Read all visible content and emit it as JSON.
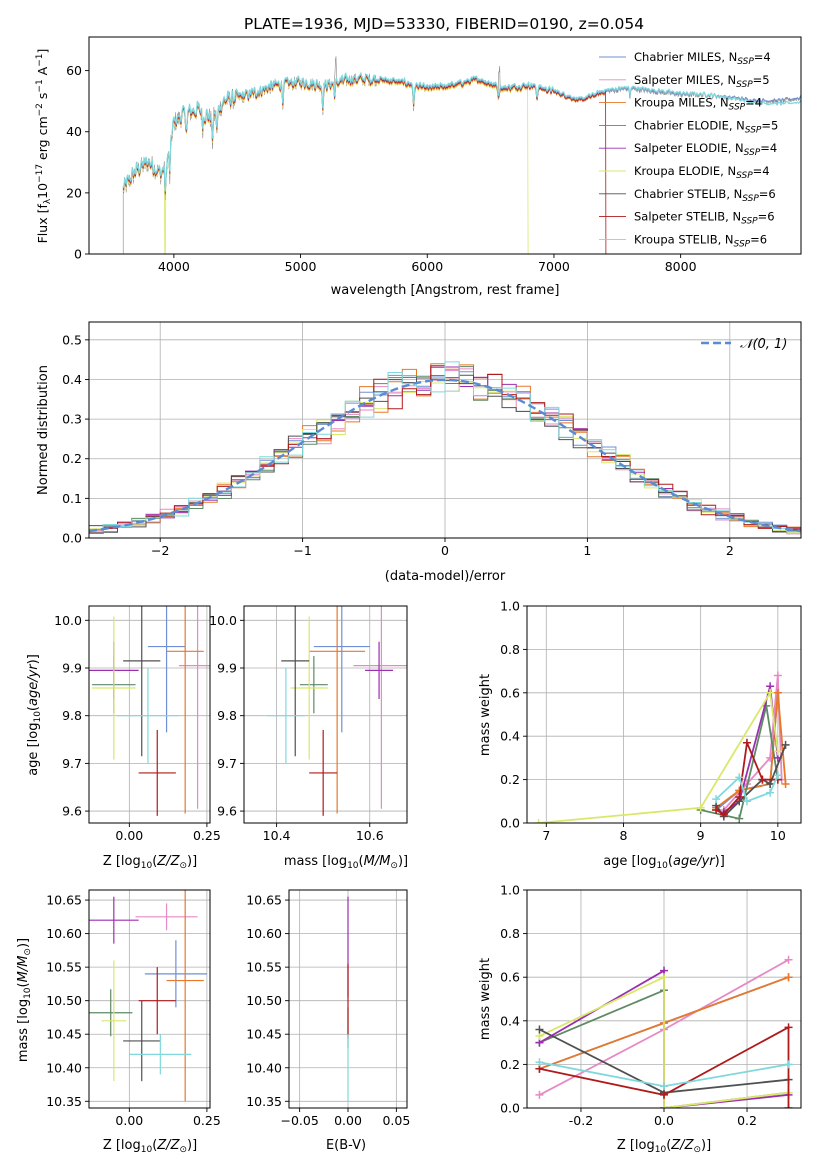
{
  "figure": {
    "title": "PLATE=1936, MJD=53330, FIBERID=0190, z=0.054"
  },
  "colors": {
    "Chabrier MILES": "#6f8fd6",
    "Salpeter MILES": "#e58ac4",
    "Kroupa MILES": "#e8782a",
    "Chabrier ELODIE": "#5f8a64",
    "Salpeter ELODIE": "#9b2fb0",
    "Kroupa ELODIE": "#d9e86a",
    "Chabrier STELIB": "#505050",
    "Salpeter STELIB": "#b01a1a",
    "Kroupa STELIB": "#7fd8dc",
    "normal": "#5b8bd4"
  },
  "chart_data": [
    {
      "id": "spectrum",
      "type": "line",
      "xlabel": "wavelength [Angstrom, rest frame]",
      "ylabel": "Flux [f_λ 10^-17 erg cm^-2 s^-1 A^-1]",
      "xlim": [
        3330,
        8950
      ],
      "ylim": [
        0,
        71
      ],
      "xticks": [
        4000,
        5000,
        6000,
        7000,
        8000
      ],
      "yticks": [
        0,
        20,
        40,
        60
      ],
      "grid": false,
      "legend_position": "top-right",
      "legend": [
        {
          "label": "Chabrier MILES",
          "sub": "SSP",
          "n": "=4"
        },
        {
          "label": "Salpeter MILES",
          "sub": "SSP",
          "n": "=5"
        },
        {
          "label": "Kroupa MILES",
          "sub": "SSP",
          "n": "=4"
        },
        {
          "label": "Chabrier ELODIE",
          "sub": "SSP",
          "n": "=5"
        },
        {
          "label": "Salpeter ELODIE",
          "sub": "SSP",
          "n": "=4"
        },
        {
          "label": "Kroupa ELODIE",
          "sub": "SSP",
          "n": "=4"
        },
        {
          "label": "Chabrier STELIB",
          "sub": "SSP",
          "n": "=6"
        },
        {
          "label": "Salpeter STELIB",
          "sub": "SSP",
          "n": "=6"
        },
        {
          "label": "Kroupa STELIB",
          "sub": "SSP",
          "n": "=6"
        }
      ],
      "continuum": [
        [
          3600,
          21
        ],
        [
          3700,
          27
        ],
        [
          3800,
          30
        ],
        [
          3900,
          26
        ],
        [
          3950,
          31
        ],
        [
          4000,
          43
        ],
        [
          4100,
          46
        ],
        [
          4200,
          47
        ],
        [
          4300,
          44
        ],
        [
          4400,
          50
        ],
        [
          4600,
          52
        ],
        [
          4800,
          55
        ],
        [
          5000,
          56
        ],
        [
          5200,
          55
        ],
        [
          5400,
          57
        ],
        [
          5600,
          57
        ],
        [
          5800,
          56
        ],
        [
          6000,
          54
        ],
        [
          6200,
          55
        ],
        [
          6400,
          57
        ],
        [
          6600,
          54
        ],
        [
          6800,
          55
        ],
        [
          7000,
          53
        ],
        [
          7200,
          50
        ],
        [
          7400,
          53
        ],
        [
          7600,
          54
        ],
        [
          7800,
          53
        ],
        [
          8000,
          52
        ],
        [
          8200,
          52
        ],
        [
          8400,
          51
        ],
        [
          8600,
          50
        ],
        [
          8800,
          50
        ],
        [
          8950,
          51
        ]
      ],
      "absorption_lines": [
        [
          3933,
          12
        ],
        [
          3968,
          11
        ],
        [
          4101,
          7
        ],
        [
          4227,
          5
        ],
        [
          4304,
          8
        ],
        [
          4340,
          7
        ],
        [
          4861,
          6
        ],
        [
          5175,
          8
        ],
        [
          5270,
          5
        ],
        [
          5893,
          8
        ],
        [
          6563,
          4
        ],
        [
          6867,
          4
        ],
        [
          7600,
          3
        ]
      ],
      "model_spikes": [
        [
          3933,
          0
        ],
        [
          6800,
          0
        ],
        [
          7410,
          0
        ]
      ]
    },
    {
      "id": "residuals",
      "type": "bar",
      "xlabel": "(data-model)/error",
      "ylabel": "Normed distribution",
      "xlim": [
        -2.5,
        2.5
      ],
      "ylim": [
        0,
        0.545
      ],
      "xticks": [
        -2,
        -1,
        0,
        1,
        2
      ],
      "yticks": [
        0.0,
        0.1,
        0.2,
        0.3,
        0.4,
        0.5
      ],
      "grid": true,
      "legend_position": "top-right",
      "legend": [
        {
          "label": "𝒩(0, 1)",
          "style": "dashed"
        }
      ],
      "bin_edges_start": -2.5,
      "bin_width": 0.1
    },
    {
      "id": "age_vs_Z",
      "type": "scatter",
      "xlabel": "Z [log10(Z/Z⊙)]",
      "ylabel": "age [log10(age/yr)]",
      "xlim": [
        -0.13,
        0.26
      ],
      "ylim": [
        9.575,
        10.03
      ],
      "xticks": [
        0.0,
        0.25
      ],
      "yticks": [
        9.6,
        9.7,
        9.8,
        9.9,
        10.0
      ],
      "points": [
        {
          "series": "Chabrier MILES",
          "x": 0.12,
          "y": 9.945,
          "xerr": 0.06,
          "yerr": 0.18
        },
        {
          "series": "Salpeter MILES",
          "x": 0.22,
          "y": 9.905,
          "xerr": 0.06,
          "yerr": 0.3
        },
        {
          "series": "Kroupa MILES",
          "x": 0.18,
          "y": 9.935,
          "xerr": 0.06,
          "yerr": 0.34
        },
        {
          "series": "Chabrier ELODIE",
          "x": -0.05,
          "y": 9.865,
          "xerr": 0.07,
          "yerr": 0.06
        },
        {
          "series": "Salpeter ELODIE",
          "x": -0.05,
          "y": 9.895,
          "xerr": 0.08,
          "yerr": 0.06
        },
        {
          "series": "Kroupa ELODIE",
          "x": -0.05,
          "y": 9.858,
          "xerr": 0.07,
          "yerr": 0.15
        },
        {
          "series": "Chabrier STELIB",
          "x": 0.04,
          "y": 9.915,
          "xerr": 0.06,
          "yerr": 0.2
        },
        {
          "series": "Salpeter STELIB",
          "x": 0.09,
          "y": 9.68,
          "xerr": 0.06,
          "yerr": 0.09
        },
        {
          "series": "Kroupa STELIB",
          "x": 0.06,
          "y": 9.8,
          "xerr": 0.1,
          "yerr": 0.1
        }
      ]
    },
    {
      "id": "age_vs_mass",
      "type": "scatter",
      "xlabel": "mass [log10(M/M⊙)]",
      "ylabel": "",
      "xlim": [
        10.33,
        10.68
      ],
      "ylim": [
        9.575,
        10.03
      ],
      "xticks": [
        10.4,
        10.6
      ],
      "yticks": [
        9.6,
        9.7,
        9.8,
        9.9,
        10.0
      ],
      "points": [
        {
          "series": "Chabrier MILES",
          "x": 10.54,
          "y": 9.945,
          "xerr": 0.06,
          "yerr": 0.18
        },
        {
          "series": "Salpeter MILES",
          "x": 10.625,
          "y": 9.905,
          "xerr": 0.06,
          "yerr": 0.3
        },
        {
          "series": "Kroupa MILES",
          "x": 10.53,
          "y": 9.935,
          "xerr": 0.06,
          "yerr": 0.34
        },
        {
          "series": "Chabrier ELODIE",
          "x": 10.48,
          "y": 9.865,
          "xerr": 0.03,
          "yerr": 0.06
        },
        {
          "series": "Salpeter ELODIE",
          "x": 10.62,
          "y": 9.895,
          "xerr": 0.03,
          "yerr": 0.06
        },
        {
          "series": "Kroupa ELODIE",
          "x": 10.47,
          "y": 9.858,
          "xerr": 0.04,
          "yerr": 0.15
        },
        {
          "series": "Chabrier STELIB",
          "x": 10.44,
          "y": 9.915,
          "xerr": 0.03,
          "yerr": 0.2
        },
        {
          "series": "Salpeter STELIB",
          "x": 10.5,
          "y": 9.68,
          "xerr": 0.03,
          "yerr": 0.09
        },
        {
          "series": "Kroupa STELIB",
          "x": 10.42,
          "y": 9.8,
          "xerr": 0.04,
          "yerr": 0.1
        }
      ]
    },
    {
      "id": "mass_weight_vs_age",
      "type": "line",
      "xlabel": "age [log10(age/yr)]",
      "ylabel": "mass weight",
      "xlim": [
        6.75,
        10.3
      ],
      "ylim": [
        0,
        1.0
      ],
      "xticks": [
        7,
        8,
        9,
        10
      ],
      "yticks": [
        0.0,
        0.2,
        0.4,
        0.6,
        0.8,
        1.0
      ],
      "grid": true,
      "series": [
        {
          "name": "Chabrier MILES",
          "x": [
            9.2,
            9.5,
            9.9,
            10.0
          ],
          "y": [
            0.06,
            0.15,
            0.18,
            0.6
          ]
        },
        {
          "name": "Salpeter MILES",
          "x": [
            9.3,
            9.6,
            9.9,
            10.0,
            10.05
          ],
          "y": [
            0.06,
            0.18,
            0.3,
            0.68,
            0.2
          ]
        },
        {
          "name": "Kroupa MILES",
          "x": [
            9.2,
            9.5,
            9.9,
            10.0,
            10.1
          ],
          "y": [
            0.07,
            0.15,
            0.18,
            0.6,
            0.18
          ]
        },
        {
          "name": "Chabrier ELODIE",
          "x": [
            9.0,
            9.5,
            9.85,
            10.0
          ],
          "y": [
            0.06,
            0.02,
            0.54,
            0.2
          ]
        },
        {
          "name": "Salpeter ELODIE",
          "x": [
            9.3,
            9.5,
            9.9,
            10.0
          ],
          "y": [
            0.05,
            0.1,
            0.63,
            0.3
          ]
        },
        {
          "name": "Kroupa ELODIE",
          "x": [
            6.9,
            9.0,
            9.9,
            10.0
          ],
          "y": [
            0.0,
            0.07,
            0.6,
            0.33
          ]
        },
        {
          "name": "Chabrier STELIB",
          "x": [
            9.2,
            9.3,
            9.5,
            9.8,
            9.9,
            10.1
          ],
          "y": [
            0.08,
            0.03,
            0.1,
            0.2,
            0.18,
            0.36
          ]
        },
        {
          "name": "Salpeter STELIB",
          "x": [
            9.2,
            9.3,
            9.5,
            9.6,
            9.8,
            10.0
          ],
          "y": [
            0.06,
            0.04,
            0.12,
            0.37,
            0.2,
            0.2
          ]
        },
        {
          "name": "Kroupa STELIB",
          "x": [
            9.2,
            9.5,
            9.6,
            9.9,
            10.0
          ],
          "y": [
            0.11,
            0.21,
            0.1,
            0.14,
            0.22
          ]
        }
      ]
    },
    {
      "id": "mass_vs_Z",
      "type": "scatter",
      "xlabel": "Z [log10(Z/Z⊙)]",
      "ylabel": "mass [log10(M/M⊙)]",
      "xlim": [
        -0.13,
        0.26
      ],
      "ylim": [
        10.34,
        10.665
      ],
      "xticks": [
        0.0,
        0.25
      ],
      "yticks": [
        10.35,
        10.4,
        10.45,
        10.5,
        10.55,
        10.6,
        10.65
      ],
      "points": [
        {
          "series": "Chabrier MILES",
          "x": 0.15,
          "y": 10.54,
          "xerr": 0.1,
          "yerr": 0.05
        },
        {
          "series": "Salpeter MILES",
          "x": 0.12,
          "y": 10.625,
          "xerr": 0.1,
          "yerr": 0.02
        },
        {
          "series": "Kroupa MILES",
          "x": 0.18,
          "y": 10.53,
          "xerr": 0.06,
          "yerr": 0.18
        },
        {
          "series": "Chabrier ELODIE",
          "x": -0.06,
          "y": 10.482,
          "xerr": 0.07,
          "yerr": 0.035
        },
        {
          "series": "Salpeter ELODIE",
          "x": -0.05,
          "y": 10.62,
          "xerr": 0.08,
          "yerr": 0.035
        },
        {
          "series": "Kroupa ELODIE",
          "x": -0.05,
          "y": 10.47,
          "xerr": 0.04,
          "yerr": 0.09
        },
        {
          "series": "Chabrier STELIB",
          "x": 0.04,
          "y": 10.44,
          "xerr": 0.06,
          "yerr": 0.06
        },
        {
          "series": "Salpeter STELIB",
          "x": 0.09,
          "y": 10.5,
          "xerr": 0.06,
          "yerr": 0.05
        },
        {
          "series": "Kroupa STELIB",
          "x": 0.1,
          "y": 10.42,
          "xerr": 0.1,
          "yerr": 0.03
        }
      ]
    },
    {
      "id": "mass_vs_ebv",
      "type": "scatter",
      "xlabel": "E(B-V)",
      "ylabel": "",
      "xlim": [
        -0.061,
        0.061
      ],
      "ylim": [
        10.34,
        10.665
      ],
      "xticks": [
        -0.05,
        0.0,
        0.05
      ],
      "yticks": [
        10.35,
        10.4,
        10.45,
        10.5,
        10.55,
        10.6,
        10.65
      ],
      "grid": true,
      "points": [
        {
          "series": "Salpeter ELODIE",
          "x": 0.0,
          "y": 10.58,
          "xerr": 0.0,
          "yerr": 0.075
        },
        {
          "series": "Chabrier ELODIE",
          "x": 0.0,
          "y": 10.46,
          "xerr": 0.0,
          "yerr": 0.03
        },
        {
          "series": "Salpeter STELIB",
          "x": 0.0,
          "y": 10.5,
          "xerr": 0.0,
          "yerr": 0.055
        },
        {
          "series": "Kroupa STELIB",
          "x": 0.0,
          "y": 10.4,
          "xerr": 0.0,
          "yerr": 0.05
        }
      ]
    },
    {
      "id": "mass_weight_vs_Z",
      "type": "line",
      "xlabel": "Z [log10(Z/Z⊙)]",
      "ylabel": "mass weight",
      "xlim": [
        -0.33,
        0.33
      ],
      "ylim": [
        0,
        1.0
      ],
      "xticks": [
        -0.2,
        0.0,
        0.2
      ],
      "yticks": [
        0.0,
        0.2,
        0.4,
        0.6,
        0.8,
        1.0
      ],
      "grid": true,
      "series": [
        {
          "name": "Chabrier MILES",
          "x": [
            -0.3,
            0.0,
            0.3
          ],
          "y": [
            0.18,
            0.39,
            0.6
          ]
        },
        {
          "name": "Salpeter MILES",
          "x": [
            -0.3,
            0.0,
            0.3
          ],
          "y": [
            0.06,
            0.36,
            0.68
          ]
        },
        {
          "name": "Kroupa MILES",
          "x": [
            -0.3,
            0.0,
            0.3
          ],
          "y": [
            0.18,
            0.39,
            0.6
          ]
        },
        {
          "name": "Chabrier ELODIE",
          "x": [
            -0.3,
            0.0,
            0.0,
            0.3
          ],
          "y": [
            0.3,
            0.54,
            0.0,
            0.07
          ]
        },
        {
          "name": "Salpeter ELODIE",
          "x": [
            -0.3,
            0.0,
            0.0,
            0.3
          ],
          "y": [
            0.3,
            0.63,
            0.0,
            0.06
          ]
        },
        {
          "name": "Kroupa ELODIE",
          "x": [
            -0.3,
            0.0,
            0.0,
            0.3
          ],
          "y": [
            0.33,
            0.6,
            0.0,
            0.07
          ]
        },
        {
          "name": "Chabrier STELIB",
          "x": [
            -0.3,
            0.0,
            0.3
          ],
          "y": [
            0.36,
            0.07,
            0.13
          ]
        },
        {
          "name": "Salpeter STELIB",
          "x": [
            -0.3,
            0.0,
            0.3,
            0.3
          ],
          "y": [
            0.18,
            0.06,
            0.37,
            0.0
          ]
        },
        {
          "name": "Kroupa STELIB",
          "x": [
            -0.3,
            0.0,
            0.3
          ],
          "y": [
            0.21,
            0.1,
            0.2
          ]
        }
      ]
    }
  ]
}
